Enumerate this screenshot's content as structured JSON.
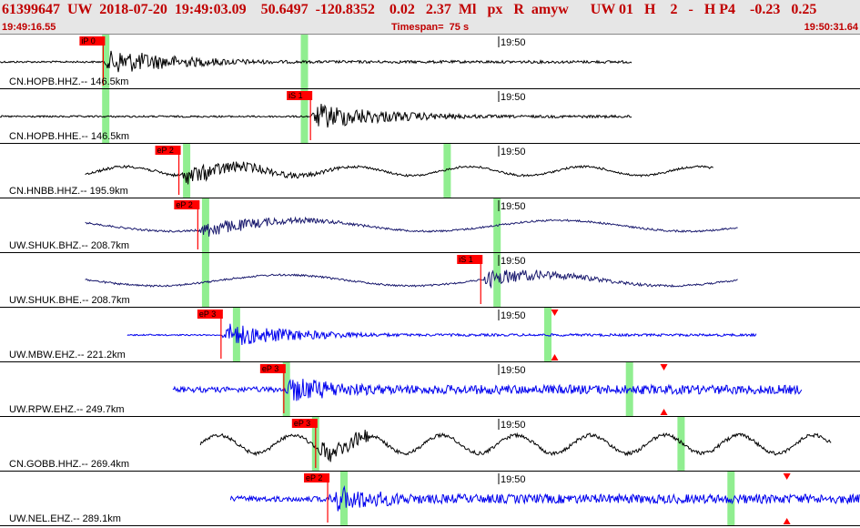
{
  "header": {
    "title": "61399647  UW  2018-07-20  19:49:03.09    50.6497  -120.8352    0.02   2.37  Ml   px   R  amyw      UW 01   H    2   -   H P4    -0.23   0.25",
    "start_time": "19:49:16.55",
    "timespan": "Timespan=  75 s",
    "end_time": "19:50:31.64"
  },
  "colors": {
    "pick_red": "#ff0000",
    "marker_green": "#90ee90",
    "header_text": "#c00000",
    "black": "#000000",
    "navy": "#1a1a6e",
    "blue": "#0000ee"
  },
  "time_tick": "19:50",
  "traces": [
    {
      "label": "CN.HOPB.HHZ.-- 146.5km",
      "color": "black",
      "pick": {
        "label": "iP 0",
        "t": 0.12
      },
      "green": [
        0.123,
        0.354
      ],
      "red_tri": null,
      "start": 0.0,
      "end": 0.735,
      "amp": "high"
    },
    {
      "label": "CN.HOPB.HHE.-- 146.5km",
      "color": "black",
      "pick": {
        "label": "iS 1",
        "t": 0.361
      },
      "green": [
        0.123,
        0.354
      ],
      "red_tri": null,
      "start": 0.0,
      "end": 0.735,
      "amp": "high"
    },
    {
      "label": "CN.HNBB.HHZ.-- 195.9km",
      "color": "black",
      "pick": {
        "label": "eP 2",
        "t": 0.208
      },
      "green": [
        0.217,
        0.52
      ],
      "red_tri": null,
      "start": 0.099,
      "end": 0.83,
      "amp": "mid"
    },
    {
      "label": "UW.SHUK.BHZ.-- 208.7km",
      "color": "navy",
      "pick": {
        "label": "eP 2",
        "t": 0.23
      },
      "green": [
        0.239,
        0.578
      ],
      "red_tri": null,
      "start": 0.099,
      "end": 0.858,
      "amp": "mid"
    },
    {
      "label": "UW.SHUK.BHE.-- 208.7km",
      "color": "navy",
      "pick": {
        "label": "iS 1",
        "t": 0.559
      },
      "green": [
        0.239,
        0.578
      ],
      "red_tri": null,
      "start": 0.099,
      "end": 0.858,
      "amp": "mid"
    },
    {
      "label": "UW.MBW.EHZ.-- 221.2km",
      "color": "blue",
      "pick": {
        "label": "eP 3",
        "t": 0.257
      },
      "green": [
        0.275,
        0.637
      ],
      "red_tri": 0.645,
      "start": 0.148,
      "end": 0.88,
      "amp": "spiky"
    },
    {
      "label": "UW.RPW.EHZ.-- 249.7km",
      "color": "blue",
      "pick": {
        "label": "eP 3",
        "t": 0.33
      },
      "green": [
        0.333,
        0.732
      ],
      "red_tri": 0.772,
      "start": 0.201,
      "end": 0.933,
      "amp": "band"
    },
    {
      "label": "CN.GOBB.HHZ.-- 269.4km",
      "color": "black",
      "pick": {
        "label": "eP 3",
        "t": 0.367
      },
      "green": [
        0.367,
        0.792
      ],
      "red_tri": null,
      "start": 0.233,
      "end": 0.967,
      "amp": "wave"
    },
    {
      "label": "UW.NEL.EHZ.-- 289.1km",
      "color": "blue",
      "pick": {
        "label": "eP 2",
        "t": 0.381
      },
      "green": [
        0.4,
        0.85
      ],
      "red_tri": 0.915,
      "start": 0.268,
      "end": 1.0,
      "amp": "band"
    }
  ]
}
